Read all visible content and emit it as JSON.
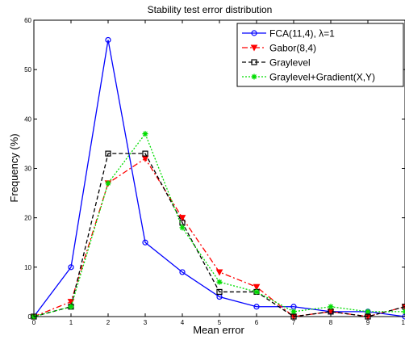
{
  "chart_data": {
    "type": "line",
    "title": "Stability test error distribution",
    "xlabel": "Mean error",
    "ylabel": "Frequency (%)",
    "xlim": [
      0,
      10
    ],
    "ylim": [
      0,
      60
    ],
    "xticks": [
      0,
      1,
      2,
      3,
      4,
      5,
      6,
      7,
      8,
      9,
      10
    ],
    "yticks": [
      0,
      10,
      20,
      30,
      40,
      50,
      60
    ],
    "grid": false,
    "legend_position": "top-right",
    "x": [
      0,
      1,
      2,
      3,
      4,
      5,
      6,
      7,
      8,
      9,
      10
    ],
    "series": [
      {
        "name": "FCA(11,4), λ=1",
        "color": "#0000ff",
        "dash": "solid",
        "marker": "circle",
        "values": [
          0,
          10,
          56,
          15,
          9,
          4,
          2,
          2,
          1,
          1,
          0
        ]
      },
      {
        "name": "Gabor(8,4)",
        "color": "#ff0000",
        "dash": "dashdot",
        "marker": "triangle-down",
        "values": [
          0,
          3,
          27,
          32,
          20,
          9,
          6,
          0,
          1,
          0,
          2
        ]
      },
      {
        "name": "Graylevel",
        "color": "#000000",
        "dash": "dashed",
        "marker": "square",
        "values": [
          0,
          2,
          33,
          33,
          19,
          5,
          5,
          0,
          1,
          0,
          2
        ]
      },
      {
        "name": "Graylevel+Gradient(X,Y)",
        "color": "#00dd00",
        "dash": "dotted",
        "marker": "asterisk",
        "values": [
          0,
          2,
          27,
          37,
          18,
          7,
          5,
          1,
          2,
          1,
          1
        ]
      }
    ]
  }
}
